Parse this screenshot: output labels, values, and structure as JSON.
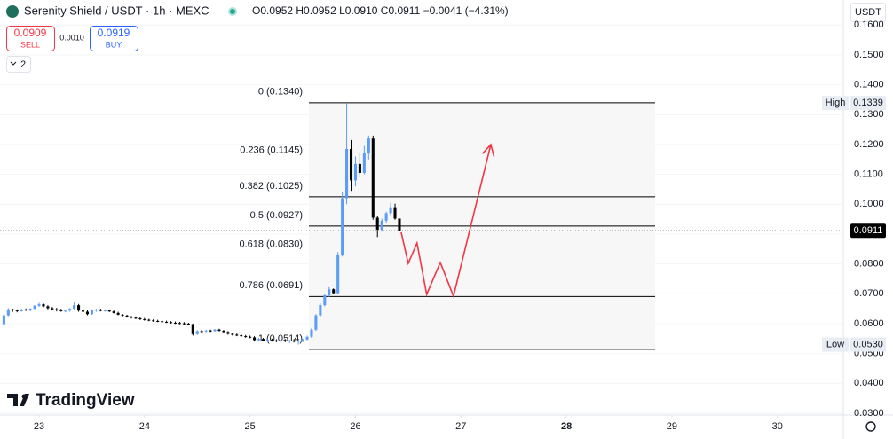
{
  "header": {
    "title": "Serenity Shield / USDT · 1h · MEXC",
    "ohlc": "O0.0952 H0.0952 L0.0910 C0.0911 −0.0041 (−4.31%)",
    "sell_price": "0.0909",
    "sell_label": "SELL",
    "spread": "0.0010",
    "buy_price": "0.0919",
    "buy_label": "BUY",
    "indicators": "2",
    "currency": "USDT",
    "brand": "TradingView"
  },
  "chart_data": {
    "type": "candlestick",
    "up_color": "#5b9cf6",
    "down_color": "#000000",
    "grid": true,
    "categories": [
      null,
      null,
      null,
      null,
      null,
      null,
      null,
      null,
      null,
      null,
      null,
      null,
      null,
      null,
      null,
      null,
      null,
      null,
      null,
      null,
      null,
      null,
      null,
      null,
      null,
      null,
      null,
      null,
      null,
      null,
      null,
      null,
      null,
      null,
      null,
      null,
      null,
      null,
      null,
      null,
      null,
      null,
      null,
      null,
      null,
      null,
      null,
      null,
      null,
      null,
      null,
      null,
      null,
      null,
      null,
      null,
      null,
      null,
      null,
      null,
      null,
      null,
      null,
      null,
      null,
      null,
      null,
      null,
      null,
      null,
      null,
      null,
      null,
      null,
      null,
      null,
      null,
      null,
      null,
      null,
      null,
      null,
      null,
      null,
      null,
      null,
      null,
      null,
      null,
      null,
      null
    ],
    "ohlc": [
      [
        0.0598,
        0.0632,
        0.0592,
        0.0628
      ],
      [
        0.0628,
        0.0652,
        0.0625,
        0.0648
      ],
      [
        0.0648,
        0.065,
        0.064,
        0.0645
      ],
      [
        0.0645,
        0.0648,
        0.0638,
        0.0642
      ],
      [
        0.0642,
        0.065,
        0.064,
        0.0647
      ],
      [
        0.0647,
        0.0651,
        0.0643,
        0.0646
      ],
      [
        0.0646,
        0.0652,
        0.0641,
        0.065
      ],
      [
        0.065,
        0.0662,
        0.0648,
        0.066
      ],
      [
        0.066,
        0.067,
        0.0656,
        0.0665
      ],
      [
        0.0665,
        0.0668,
        0.0655,
        0.0658
      ],
      [
        0.0658,
        0.0662,
        0.0648,
        0.0652
      ],
      [
        0.0652,
        0.0656,
        0.0644,
        0.0648
      ],
      [
        0.0648,
        0.0653,
        0.0641,
        0.0645
      ],
      [
        0.0645,
        0.065,
        0.064,
        0.0642
      ],
      [
        0.0642,
        0.0647,
        0.0638,
        0.0644
      ],
      [
        0.0644,
        0.0652,
        0.064,
        0.065
      ],
      [
        0.065,
        0.0672,
        0.0648,
        0.0662
      ],
      [
        0.0662,
        0.0666,
        0.064,
        0.0644
      ],
      [
        0.0644,
        0.065,
        0.0636,
        0.064
      ],
      [
        0.064,
        0.0645,
        0.0628,
        0.0632
      ],
      [
        0.0632,
        0.0648,
        0.063,
        0.0645
      ],
      [
        0.0645,
        0.065,
        0.064,
        0.0647
      ],
      [
        0.0647,
        0.065,
        0.0641,
        0.0643
      ],
      [
        0.0643,
        0.0648,
        0.064,
        0.0645
      ],
      [
        0.0645,
        0.0647,
        0.0639,
        0.0641
      ],
      [
        0.0641,
        0.0644,
        0.0634,
        0.0636
      ],
      [
        0.0636,
        0.064,
        0.0628,
        0.063
      ],
      [
        0.063,
        0.0633,
        0.0624,
        0.0627
      ],
      [
        0.0627,
        0.063,
        0.062,
        0.0623
      ],
      [
        0.0623,
        0.0626,
        0.0617,
        0.062
      ],
      [
        0.062,
        0.0624,
        0.0615,
        0.0618
      ],
      [
        0.0618,
        0.0622,
        0.0612,
        0.0615
      ],
      [
        0.0615,
        0.0619,
        0.061,
        0.0613
      ],
      [
        0.0613,
        0.0616,
        0.0608,
        0.0611
      ],
      [
        0.0611,
        0.0615,
        0.0606,
        0.0609
      ],
      [
        0.0609,
        0.0613,
        0.0605,
        0.0608
      ],
      [
        0.0608,
        0.0611,
        0.0603,
        0.0606
      ],
      [
        0.0606,
        0.061,
        0.0602,
        0.0605
      ],
      [
        0.0605,
        0.0608,
        0.06,
        0.0603
      ],
      [
        0.0603,
        0.0607,
        0.0599,
        0.0602
      ],
      [
        0.0602,
        0.0606,
        0.0598,
        0.0601
      ],
      [
        0.0601,
        0.0605,
        0.0597,
        0.06
      ],
      [
        0.06,
        0.0603,
        0.0595,
        0.0598
      ],
      [
        0.0598,
        0.06,
        0.056,
        0.0565
      ],
      [
        0.0565,
        0.0578,
        0.0562,
        0.0575
      ],
      [
        0.0575,
        0.058,
        0.057,
        0.0574
      ],
      [
        0.0574,
        0.0579,
        0.0571,
        0.0577
      ],
      [
        0.0577,
        0.058,
        0.0572,
        0.0575
      ],
      [
        0.0575,
        0.0582,
        0.0573,
        0.058
      ],
      [
        0.058,
        0.0583,
        0.0574,
        0.0576
      ],
      [
        0.0576,
        0.0579,
        0.057,
        0.0572
      ],
      [
        0.0572,
        0.0575,
        0.0563,
        0.0566
      ],
      [
        0.0566,
        0.057,
        0.056,
        0.0563
      ],
      [
        0.0563,
        0.0567,
        0.0558,
        0.0561
      ],
      [
        0.0561,
        0.0565,
        0.0555,
        0.0558
      ],
      [
        0.0558,
        0.0562,
        0.0553,
        0.0556
      ],
      [
        0.0556,
        0.056,
        0.0551,
        0.0554
      ],
      [
        0.0554,
        0.0558,
        0.054,
        0.0545
      ],
      [
        0.0545,
        0.0552,
        0.054,
        0.0549
      ],
      [
        0.0549,
        0.0552,
        0.0541,
        0.0543
      ],
      [
        0.0543,
        0.0548,
        0.0538,
        0.0546
      ],
      [
        0.0546,
        0.055,
        0.054,
        0.0544
      ],
      [
        0.0544,
        0.0548,
        0.0538,
        0.0542
      ],
      [
        0.0542,
        0.0547,
        0.0536,
        0.0545
      ],
      [
        0.0545,
        0.0549,
        0.0538,
        0.0541
      ],
      [
        0.0541,
        0.0546,
        0.0535,
        0.0544
      ],
      [
        0.0544,
        0.0548,
        0.0537,
        0.054
      ],
      [
        0.054,
        0.0546,
        0.053,
        0.0543
      ],
      [
        0.0543,
        0.055,
        0.0538,
        0.0547
      ],
      [
        0.0547,
        0.056,
        0.0544,
        0.0556
      ],
      [
        0.0556,
        0.0585,
        0.0552,
        0.058
      ],
      [
        0.058,
        0.0632,
        0.0576,
        0.0628
      ],
      [
        0.0628,
        0.0668,
        0.0624,
        0.0662
      ],
      [
        0.0662,
        0.07,
        0.0658,
        0.0695
      ],
      [
        0.0695,
        0.0722,
        0.069,
        0.0715
      ],
      [
        0.0715,
        0.0718,
        0.0698,
        0.0702
      ],
      [
        0.0702,
        0.084,
        0.0698,
        0.083
      ],
      [
        0.083,
        0.104,
        0.0825,
        0.102
      ],
      [
        0.102,
        0.1339,
        0.1,
        0.1185
      ],
      [
        0.1185,
        0.1215,
        0.1045,
        0.108
      ],
      [
        0.108,
        0.116,
        0.106,
        0.1135
      ],
      [
        0.1135,
        0.1175,
        0.109,
        0.1105
      ],
      [
        0.1105,
        0.1195,
        0.11,
        0.117
      ],
      [
        0.117,
        0.123,
        0.115,
        0.122
      ],
      [
        0.122,
        0.123,
        0.0948,
        0.0955
      ],
      [
        0.0955,
        0.0962,
        0.089,
        0.0915
      ],
      [
        0.0915,
        0.0952,
        0.0908,
        0.0945
      ],
      [
        0.0945,
        0.0975,
        0.0938,
        0.097
      ],
      [
        0.097,
        0.1005,
        0.0962,
        0.099
      ],
      [
        0.099,
        0.1002,
        0.0948,
        0.0952
      ],
      [
        0.0952,
        0.0952,
        0.091,
        0.0911
      ]
    ],
    "xlim": [
      -0.89,
      191.0
    ],
    "xticks": [
      {
        "value": 8,
        "label": "23"
      },
      {
        "value": 32,
        "label": "24"
      },
      {
        "value": 56,
        "label": "25"
      },
      {
        "value": 80,
        "label": "26"
      },
      {
        "value": 104,
        "label": "27"
      },
      {
        "value": 128,
        "label": "28"
      },
      {
        "value": 152,
        "label": "29"
      },
      {
        "value": 176,
        "label": "30"
      }
    ],
    "ylim": [
      0.0294,
      0.1684
    ],
    "yticks": [
      {
        "value": 0.03,
        "label": "0.0300"
      },
      {
        "value": 0.04,
        "label": "0.0400"
      },
      {
        "value": 0.05,
        "label": "0.0500"
      },
      {
        "value": 0.06,
        "label": "0.0600"
      },
      {
        "value": 0.07,
        "label": "0.0700"
      },
      {
        "value": 0.08,
        "label": "0.0800"
      },
      {
        "value": 0.09,
        "label": "0.0900"
      },
      {
        "value": 0.1,
        "label": "0.1000"
      },
      {
        "value": 0.11,
        "label": "0.1100"
      },
      {
        "value": 0.12,
        "label": "0.1200"
      },
      {
        "value": 0.13,
        "label": "0.1300"
      },
      {
        "value": 0.14,
        "label": "0.1400"
      },
      {
        "value": 0.15,
        "label": "0.1500"
      },
      {
        "value": 0.16,
        "label": "0.1600"
      }
    ],
    "fib_levels": [
      {
        "value": 0.134,
        "label": "0 (0.1340)"
      },
      {
        "value": 0.1145,
        "label": "0.236 (0.1145)"
      },
      {
        "value": 0.1025,
        "label": "0.382 (0.1025)"
      },
      {
        "value": 0.0927,
        "label": "0.5 (0.0927)"
      },
      {
        "value": 0.083,
        "label": "0.618 (0.0830)"
      },
      {
        "value": 0.0691,
        "label": "0.786 (0.0691)"
      },
      {
        "value": 0.0514,
        "label": "1 (0.0514)"
      }
    ],
    "projection": {
      "color": "#f23645",
      "x": [
        90.4,
        92.0,
        94.0,
        96.2,
        99.3,
        102.3,
        110.8
      ],
      "values": [
        0.0906,
        0.0802,
        0.087,
        0.0698,
        0.0805,
        0.0692,
        0.12
      ]
    },
    "price_markers": {
      "labels": [
        "High",
        "Low"
      ],
      "values": [
        0.1339,
        0.053
      ],
      "value_labels": [
        "0.1339",
        "0.0530"
      ]
    },
    "last_price": {
      "value": 0.0911,
      "label": "0.0911"
    }
  }
}
